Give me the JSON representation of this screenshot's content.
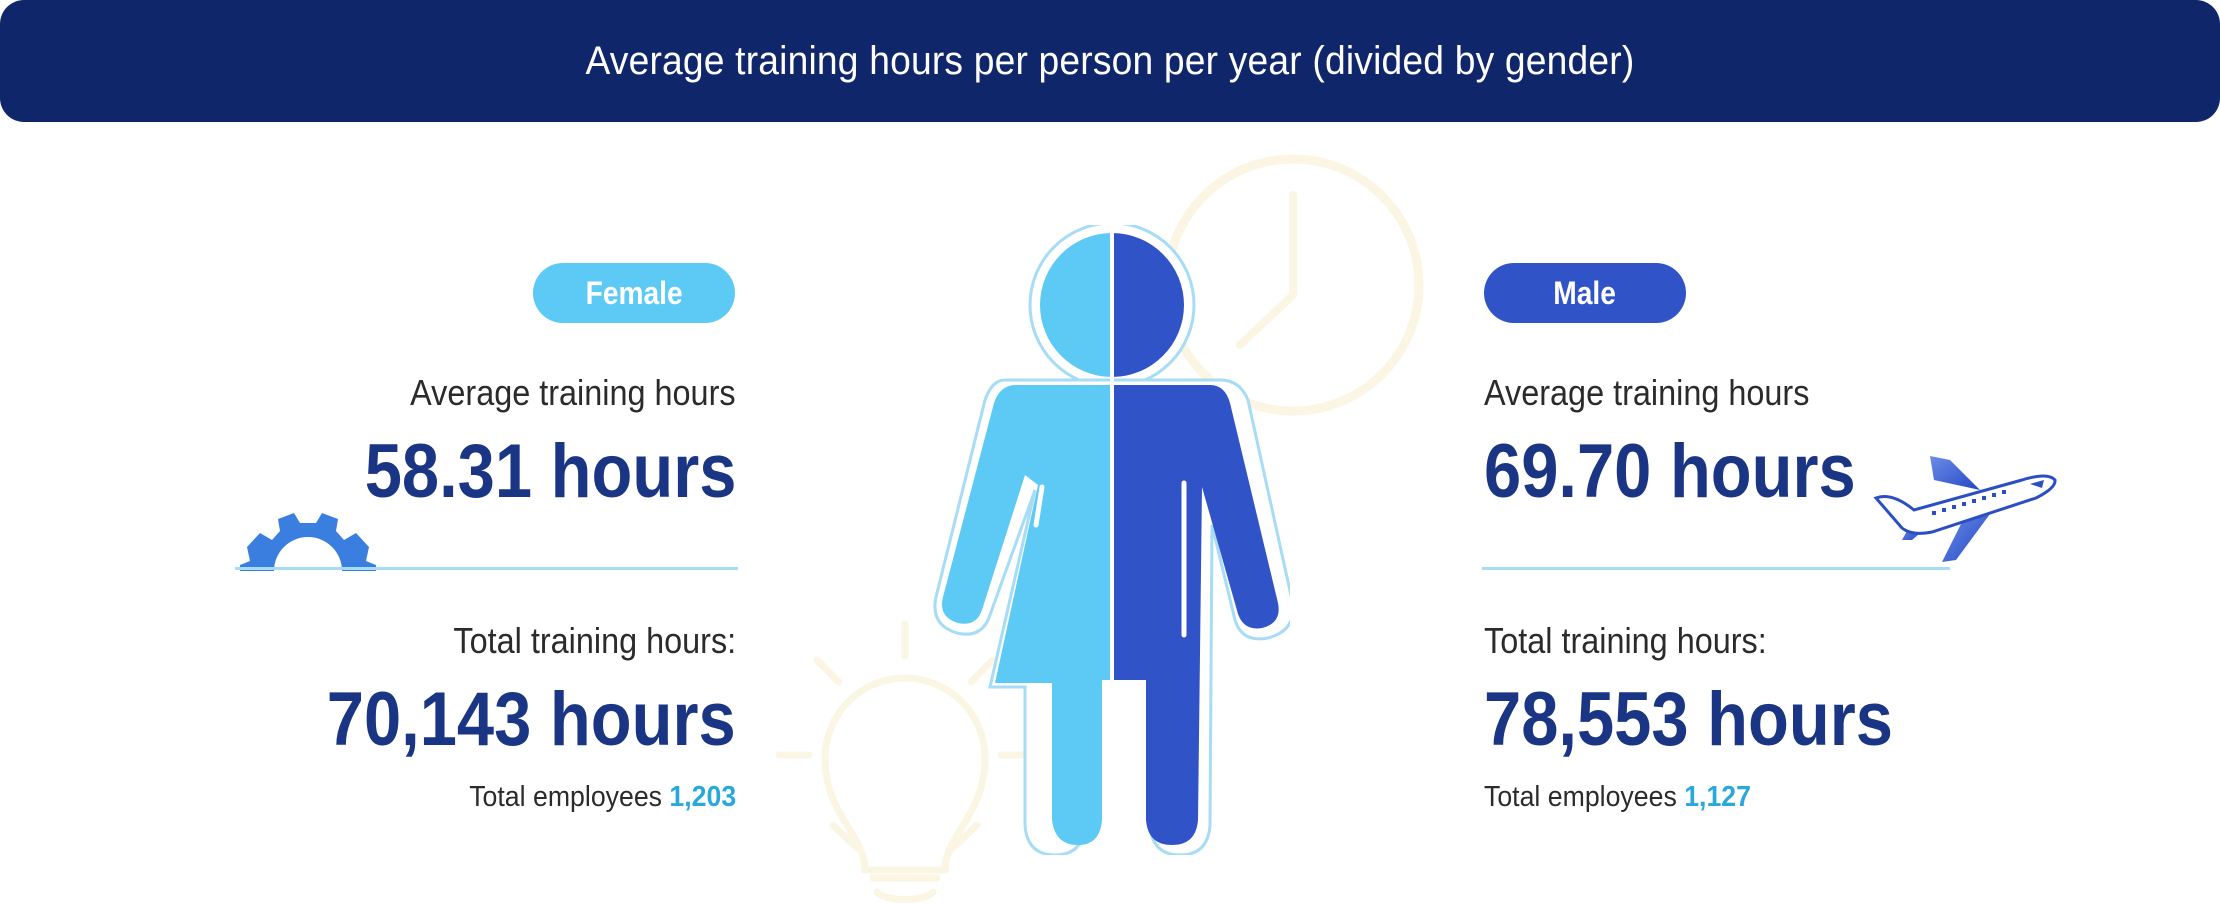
{
  "title": "Average training hours per person per year (divided by gender)",
  "colors": {
    "header_bg": "#10266b",
    "female": "#5dc9f5",
    "male": "#3054c8",
    "value_text": "#1a3583",
    "employee_count": "#29a8dc",
    "decoration": "#fbf5e3"
  },
  "icons": {
    "center": "person-split-icon",
    "background": [
      "clock-icon",
      "lightbulb-icon"
    ],
    "female_side": "gear-icon",
    "male_side": "airplane-icon"
  },
  "female": {
    "badge": "Female",
    "avg_label": "Average training hours",
    "avg_value": "58.31 hours",
    "total_label": "Total training hours:",
    "total_value": "70,143 hours",
    "employees_label": "Total employees",
    "employees_count": "1,203"
  },
  "male": {
    "badge": "Male",
    "avg_label": "Average training hours",
    "avg_value": "69.70 hours",
    "total_label": "Total training hours:",
    "total_value": "78,553 hours",
    "employees_label": "Total employees",
    "employees_count": "1,127"
  }
}
